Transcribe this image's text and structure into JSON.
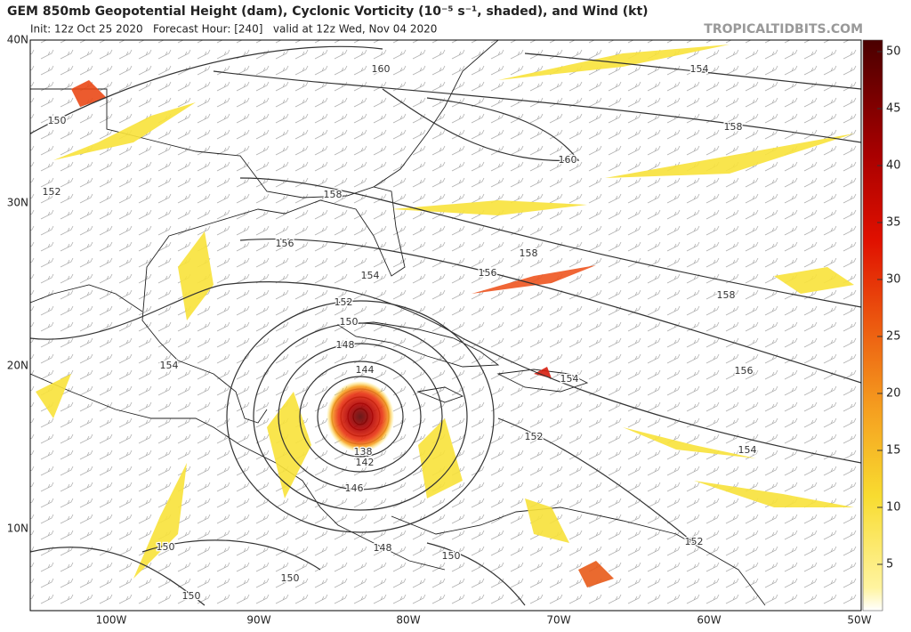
{
  "header": {
    "title": "GEM 850mb Geopotential Height (dam), Cyclonic Vorticity (10⁻⁵ s⁻¹, shaded), and Wind (kt)",
    "subtitle": "Init: 12z Oct 25 2020   Forecast Hour: [240]   valid at 12z Wed, Nov 04 2020",
    "source": "TROPICALTIDBITS.COM"
  },
  "map": {
    "lat_labels": [
      "40N",
      "30N",
      "20N",
      "10N"
    ],
    "lon_labels": [
      "100W",
      "90W",
      "80W",
      "70W",
      "60W",
      "50W"
    ],
    "contour_labels": [
      "160",
      "154",
      "150",
      "158",
      "160",
      "152",
      "158",
      "156",
      "158",
      "154",
      "156",
      "152",
      "158",
      "150",
      "148",
      "154",
      "144",
      "156",
      "154",
      "152",
      "154",
      "138",
      "142",
      "146",
      "150",
      "148",
      "150",
      "152",
      "150",
      "150"
    ]
  },
  "colorbar": {
    "ticks": [
      5,
      10,
      15,
      20,
      25,
      30,
      35,
      40,
      45,
      50
    ]
  }
}
